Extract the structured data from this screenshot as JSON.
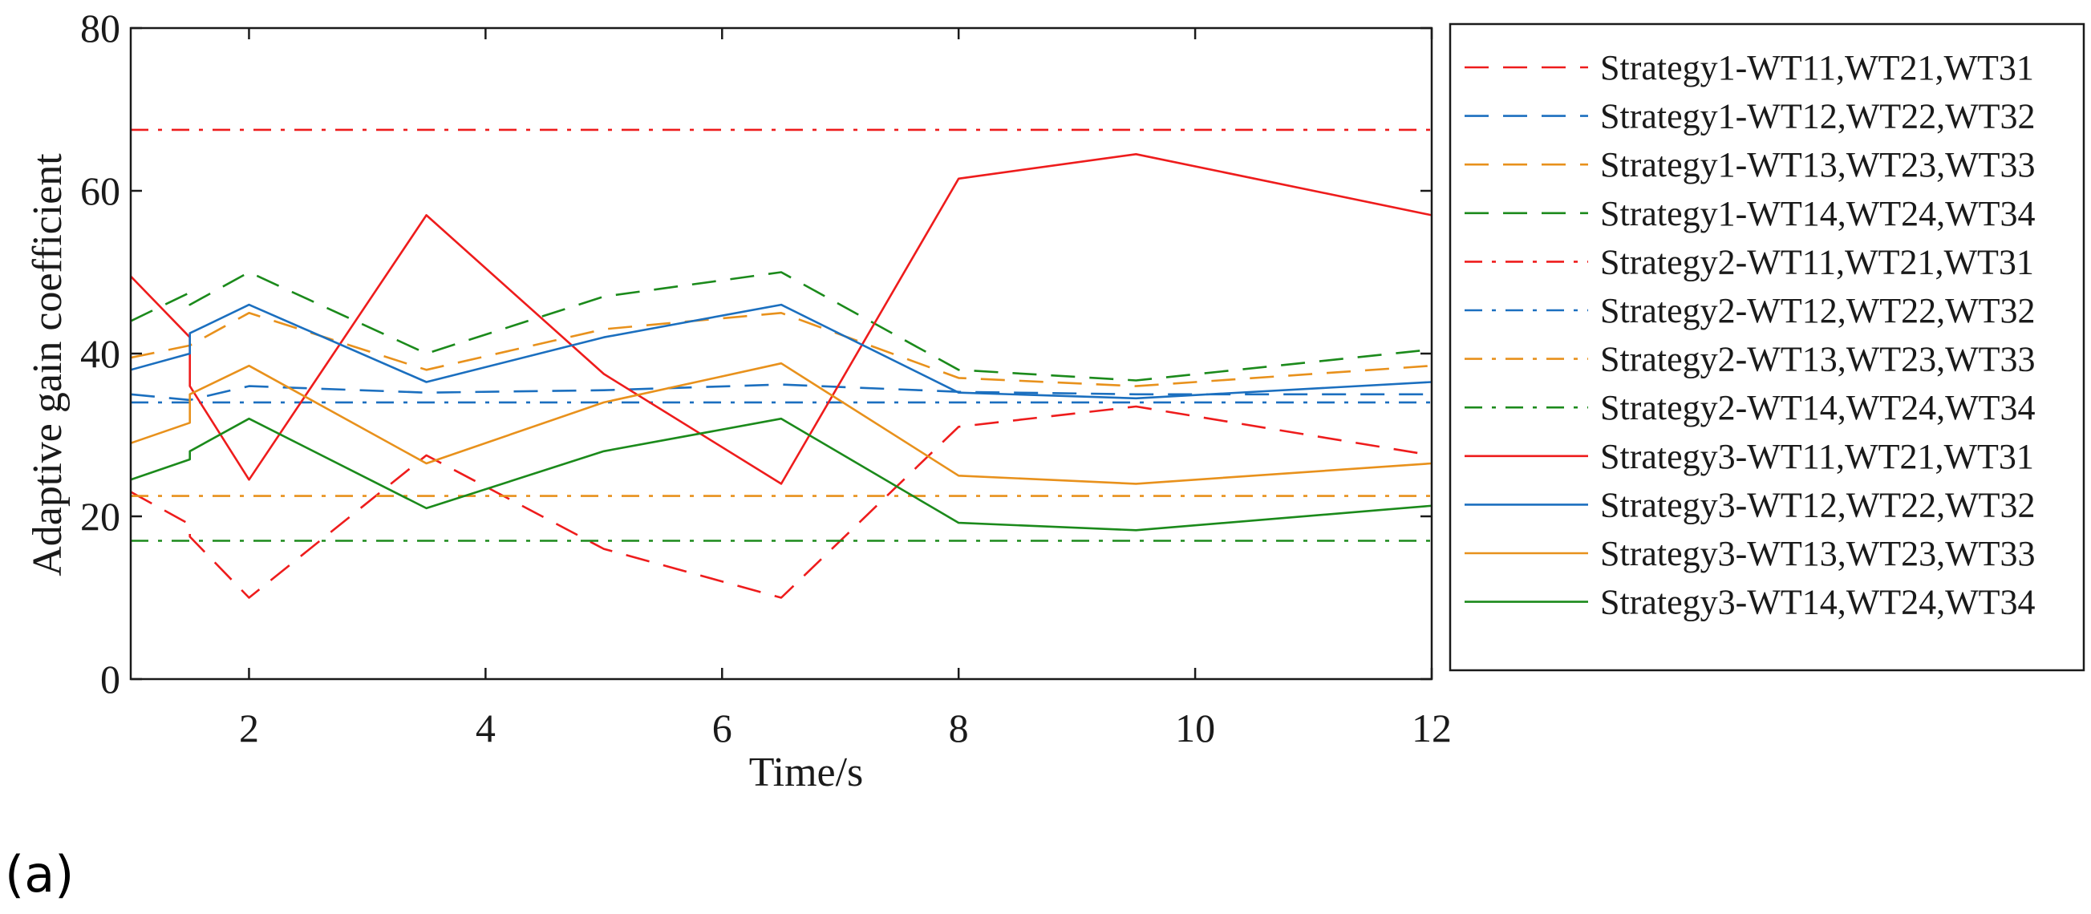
{
  "chart_data": {
    "type": "line",
    "xlabel": "Time/s",
    "ylabel": "Adaptive gain coefficient",
    "xlim": [
      1,
      12
    ],
    "ylim": [
      0,
      80
    ],
    "xticks": [
      2,
      4,
      6,
      8,
      10,
      12
    ],
    "yticks": [
      0,
      20,
      40,
      60,
      80
    ],
    "legend_position": "outside-right",
    "panel_label": "(a)",
    "colors": {
      "red": "#ee1c1c",
      "blue": "#1b6fbf",
      "orange": "#e8911c",
      "green": "#1b8a1b"
    },
    "series": [
      {
        "name": "Strategy1-WT11,WT21,WT31",
        "color": "#ee1c1c",
        "dash": "dashed",
        "x": [
          1,
          1.5,
          1.5,
          2,
          3.5,
          5,
          6.5,
          8,
          9.5,
          12
        ],
        "y": [
          23,
          19,
          17.5,
          10,
          27.5,
          16,
          10,
          31,
          33.5,
          27.5
        ]
      },
      {
        "name": "Strategy1-WT12,WT22,WT32",
        "color": "#1b6fbf",
        "dash": "dashed",
        "x": [
          1,
          1.5,
          2,
          3.5,
          5,
          6.5,
          8,
          9.5,
          12
        ],
        "y": [
          35,
          34.3,
          36,
          35.2,
          35.5,
          36.2,
          35.3,
          35,
          35
        ]
      },
      {
        "name": "Strategy1-WT13,WT23,WT33",
        "color": "#e8911c",
        "dash": "dashed",
        "x": [
          1,
          1.5,
          2,
          3.5,
          5,
          6.5,
          8,
          9.5,
          12
        ],
        "y": [
          39.5,
          41,
          45,
          38,
          43,
          45,
          37,
          36,
          38.5
        ]
      },
      {
        "name": "Strategy1-WT14,WT24,WT34",
        "color": "#1b8a1b",
        "dash": "dashed",
        "x": [
          1,
          1.5,
          1.5,
          2,
          3.5,
          5,
          6.5,
          8,
          9.5,
          12
        ],
        "y": [
          44,
          47.5,
          46,
          50,
          40,
          47,
          50,
          38,
          36.7,
          40.5
        ]
      },
      {
        "name": "Strategy2-WT11,WT21,WT31",
        "color": "#ee1c1c",
        "dash": "dashdot",
        "x": [
          1,
          12
        ],
        "y": [
          67.5,
          67.5
        ]
      },
      {
        "name": "Strategy2-WT12,WT22,WT32",
        "color": "#1b6fbf",
        "dash": "dashdot",
        "x": [
          1,
          12
        ],
        "y": [
          34,
          34
        ]
      },
      {
        "name": "Strategy2-WT13,WT23,WT33",
        "color": "#e8911c",
        "dash": "dashdot",
        "x": [
          1,
          12
        ],
        "y": [
          22.5,
          22.5
        ]
      },
      {
        "name": "Strategy2-WT14,WT24,WT34",
        "color": "#1b8a1b",
        "dash": "dashdot",
        "x": [
          1,
          12
        ],
        "y": [
          17,
          17
        ]
      },
      {
        "name": "Strategy3-WT11,WT21,WT31",
        "color": "#ee1c1c",
        "dash": "solid",
        "x": [
          1,
          1.5,
          1.5,
          2,
          3.5,
          5,
          6.5,
          8,
          9.5,
          12
        ],
        "y": [
          49.5,
          42,
          36,
          24.5,
          57,
          37.5,
          24,
          61.5,
          64.5,
          57
        ]
      },
      {
        "name": "Strategy3-WT12,WT22,WT32",
        "color": "#1b6fbf",
        "dash": "solid",
        "x": [
          1,
          1.5,
          1.5,
          2,
          3.5,
          5,
          6.5,
          8,
          9.5,
          12
        ],
        "y": [
          38,
          40,
          42.5,
          46,
          36.5,
          42,
          46,
          35.2,
          34.5,
          36.5
        ]
      },
      {
        "name": "Strategy3-WT13,WT23,WT33",
        "color": "#e8911c",
        "dash": "solid",
        "x": [
          1,
          1.5,
          1.5,
          2,
          3.5,
          5,
          6.5,
          8,
          9.5,
          12
        ],
        "y": [
          29,
          31.5,
          35,
          38.5,
          26.5,
          34,
          38.8,
          25,
          24,
          26.5
        ]
      },
      {
        "name": "Strategy3-WT14,WT24,WT34",
        "color": "#1b8a1b",
        "dash": "solid",
        "x": [
          1,
          1.5,
          1.5,
          2,
          3.5,
          5,
          6.5,
          8,
          9.5,
          12
        ],
        "y": [
          24.5,
          27,
          28,
          32,
          21,
          28,
          32,
          19.2,
          18.3,
          21.3
        ]
      }
    ]
  }
}
